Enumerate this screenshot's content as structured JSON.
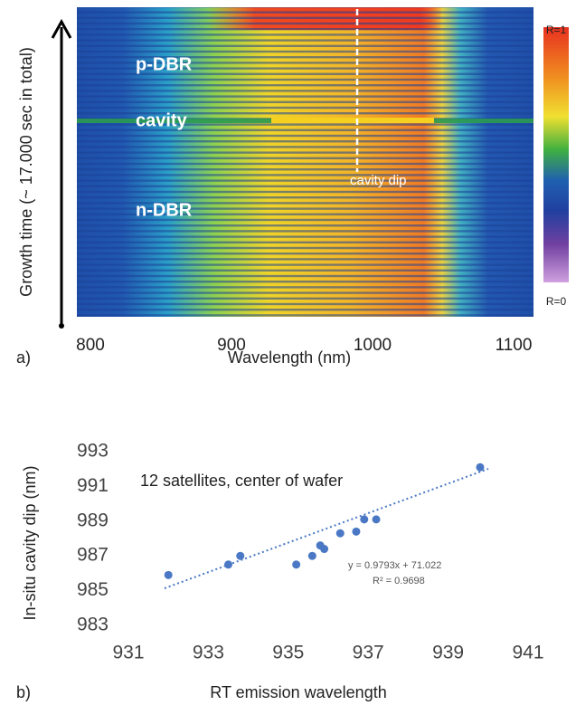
{
  "chart_data": [
    {
      "type": "heatmap",
      "panel_label": "a)",
      "xlabel": "Wavelength (nm)",
      "ylabel": "Growth time (~ 17.000 sec in total)",
      "xlim": [
        800,
        1100
      ],
      "xticks": [
        800,
        900,
        1000,
        1100
      ],
      "colorbar_labels": [
        "R=1",
        "R=0"
      ],
      "annotations": [
        "p-DBR",
        "cavity",
        "n-DBR",
        "cavity dip"
      ]
    },
    {
      "type": "scatter",
      "panel_label": "b)",
      "xlabel": "RT emission wavelength",
      "ylabel": "In-situ cavity dip (nm)",
      "title": "12 satellites, center of wafer",
      "x": [
        932.0,
        933.5,
        933.8,
        935.2,
        935.6,
        935.8,
        935.9,
        936.3,
        936.7,
        936.9,
        937.2,
        939.8
      ],
      "values": [
        985.9,
        986.5,
        987.0,
        986.5,
        987.0,
        987.6,
        987.4,
        988.3,
        988.4,
        989.1,
        989.1,
        992.1
      ],
      "color": "#4a78c4",
      "xlim": [
        931,
        941
      ],
      "xticks": [
        931,
        933,
        935,
        937,
        939,
        941
      ],
      "ylim": [
        983,
        993
      ],
      "yticks": [
        983,
        985,
        987,
        989,
        991,
        993
      ],
      "annotations": [
        "y = 0.9793x + 71.022",
        "R² = 0.9698"
      ]
    }
  ]
}
